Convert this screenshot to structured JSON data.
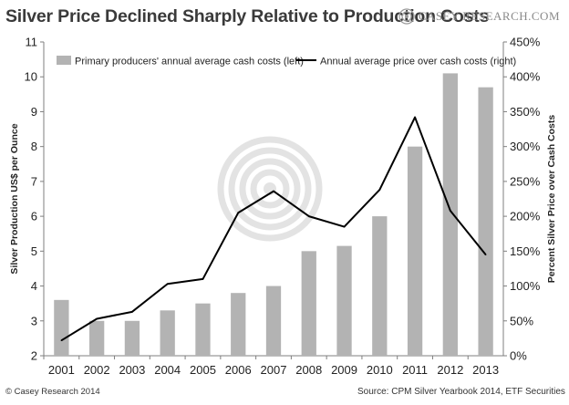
{
  "title": "Silver Price Declined Sharply Relative to Production Costs",
  "logo_text": "CASEY RESEARCH.COM",
  "footer_left": "© Casey Research 2014",
  "footer_right": "Source:  CPM Silver Yearbook 2014, ETF Securities",
  "colors": {
    "bar": "#b3b3b3",
    "line": "#000000",
    "watermark": "#e3e3e3"
  },
  "chart_data": {
    "type": "bar+line",
    "title": "Silver Price Declined Sharply Relative to Production Costs",
    "categories": [
      "2001",
      "2002",
      "2003",
      "2004",
      "2005",
      "2006",
      "2007",
      "2008",
      "2009",
      "2010",
      "2011",
      "2012",
      "2013"
    ],
    "series": [
      {
        "name": "Primary producers' annual average cash costs (left)",
        "type": "bar",
        "axis": "left",
        "values": [
          3.6,
          3.0,
          3.0,
          3.3,
          3.5,
          3.8,
          4.0,
          5.0,
          5.15,
          6.0,
          8.0,
          10.1,
          9.7
        ]
      },
      {
        "name": "Annual average price over cash costs (right)",
        "type": "line",
        "axis": "right",
        "values": [
          22,
          53,
          63,
          103,
          110,
          205,
          236,
          200,
          185,
          238,
          342,
          208,
          145
        ]
      }
    ],
    "ylabel_left": "Silver Production US$ per Ounce",
    "ylabel_right": "Percent Silver Price over Cash Costs",
    "ylim_left": [
      2,
      11
    ],
    "yticks_left": [
      "2",
      "3",
      "4",
      "5",
      "6",
      "7",
      "8",
      "9",
      "10",
      "11"
    ],
    "ylim_right": [
      0,
      450
    ],
    "yticks_right": [
      "0%",
      "50%",
      "100%",
      "150%",
      "200%",
      "250%",
      "300%",
      "350%",
      "400%",
      "450%"
    ],
    "legend_position": "top",
    "grid": false
  }
}
